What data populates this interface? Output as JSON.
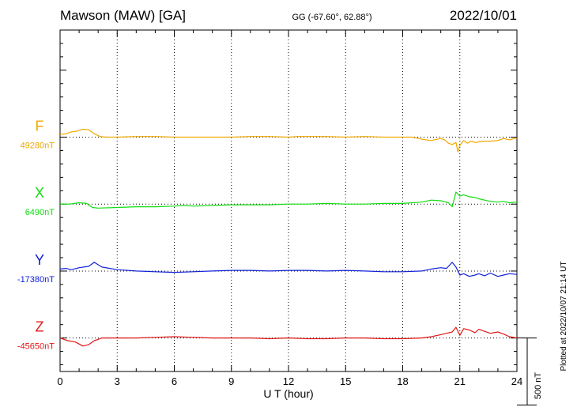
{
  "header": {
    "station": "Mawson (MAW)  [GA]",
    "coords": "GG (-67.60°,  62.88°)",
    "date": "2022/10/01"
  },
  "footer": {
    "plotted": "Plotted at 2022/10/07 21:14 UT"
  },
  "chart_data": {
    "type": "line",
    "xlabel": "U T (hour)",
    "xlim": [
      0,
      24
    ],
    "xticks": [
      0,
      3,
      6,
      9,
      12,
      15,
      18,
      21,
      24
    ],
    "ylim_nT": [
      -250,
      2300
    ],
    "grid": true,
    "scale_bar": {
      "label": "500 nT",
      "value": 500
    },
    "colors": {
      "F": "#f0a800",
      "X": "#11dd11",
      "Y": "#1020d8",
      "Z": "#e01818"
    },
    "series": [
      {
        "name": "F",
        "baseline_label": "49280nT",
        "baseline_nT": 49280,
        "offset": 1500,
        "x": [
          0,
          0.3,
          0.6,
          0.9,
          1.2,
          1.5,
          1.8,
          2.1,
          2.4,
          3,
          4,
          5,
          6,
          7,
          8,
          9,
          10,
          11,
          12,
          12.5,
          13,
          14,
          15,
          16,
          17,
          18,
          18.5,
          19,
          19.5,
          20,
          20.2,
          20.4,
          20.6,
          20.8,
          20.9,
          21,
          21.2,
          21.4,
          21.6,
          21.8,
          22,
          22.3,
          22.6,
          23,
          23.3,
          23.6,
          24
        ],
        "values": [
          20,
          25,
          40,
          45,
          60,
          55,
          25,
          5,
          0,
          0,
          5,
          5,
          0,
          0,
          0,
          0,
          5,
          5,
          0,
          5,
          5,
          5,
          0,
          5,
          0,
          0,
          0,
          -15,
          -25,
          -10,
          -20,
          -45,
          -55,
          -40,
          -110,
          -60,
          -25,
          -45,
          -30,
          -40,
          -35,
          -30,
          -30,
          -25,
          -10,
          -20,
          -5
        ]
      },
      {
        "name": "X",
        "baseline_label": "6490nT",
        "baseline_nT": 6490,
        "offset": 1000,
        "x": [
          0,
          0.5,
          1,
          1.4,
          1.7,
          2,
          3,
          4,
          5,
          6,
          6.5,
          7,
          8,
          9,
          10,
          11,
          12,
          13,
          14,
          15,
          16,
          17,
          18,
          19,
          19.5,
          20,
          20.4,
          20.6,
          20.8,
          21,
          21.2,
          21.5,
          21.8,
          22,
          22.3,
          22.6,
          23,
          23.3,
          23.6,
          24
        ],
        "values": [
          0,
          0,
          10,
          5,
          -25,
          -30,
          -25,
          -20,
          -20,
          -15,
          -10,
          -15,
          -10,
          -5,
          -5,
          -5,
          0,
          0,
          5,
          0,
          0,
          5,
          5,
          15,
          30,
          25,
          10,
          -20,
          90,
          60,
          70,
          55,
          50,
          40,
          30,
          20,
          15,
          20,
          10,
          15
        ]
      },
      {
        "name": "Y",
        "baseline_label": "-17380nT",
        "baseline_nT": -17380,
        "offset": 500,
        "x": [
          0,
          0.3,
          0.6,
          1,
          1.5,
          1.8,
          2.2,
          3,
          4,
          5,
          6,
          7,
          8,
          9,
          10,
          11,
          12,
          13,
          14,
          15,
          16,
          17,
          18,
          19,
          19.5,
          20,
          20.3,
          20.6,
          20.8,
          21,
          21.2,
          21.5,
          21.8,
          22,
          22.3,
          22.6,
          23,
          23.3,
          23.6,
          24
        ],
        "values": [
          15,
          20,
          10,
          25,
          35,
          65,
          30,
          10,
          0,
          -5,
          -10,
          -5,
          0,
          5,
          5,
          0,
          5,
          5,
          0,
          5,
          0,
          -5,
          -5,
          0,
          15,
          25,
          20,
          65,
          30,
          -30,
          -20,
          -40,
          -30,
          -20,
          -35,
          -15,
          -40,
          -30,
          -20,
          -25
        ]
      },
      {
        "name": "Z",
        "baseline_label": "-45650nT",
        "baseline_nT": -45650,
        "offset": 0,
        "x": [
          0,
          0.4,
          0.8,
          1.2,
          1.5,
          1.8,
          2.2,
          3,
          4,
          5,
          6,
          7,
          8,
          9,
          10,
          11,
          12,
          13,
          14,
          15,
          16,
          17,
          18,
          19,
          19.5,
          20,
          20.3,
          20.6,
          20.8,
          21,
          21.2,
          21.5,
          21.8,
          22,
          22.3,
          22.6,
          23,
          23.3,
          23.6,
          24
        ],
        "values": [
          0,
          -20,
          -30,
          -60,
          -50,
          -20,
          0,
          0,
          0,
          5,
          10,
          5,
          0,
          0,
          0,
          -5,
          0,
          -5,
          -5,
          0,
          0,
          -5,
          -5,
          0,
          10,
          25,
          35,
          45,
          80,
          20,
          70,
          60,
          40,
          65,
          50,
          35,
          45,
          30,
          10,
          0
        ]
      }
    ]
  }
}
